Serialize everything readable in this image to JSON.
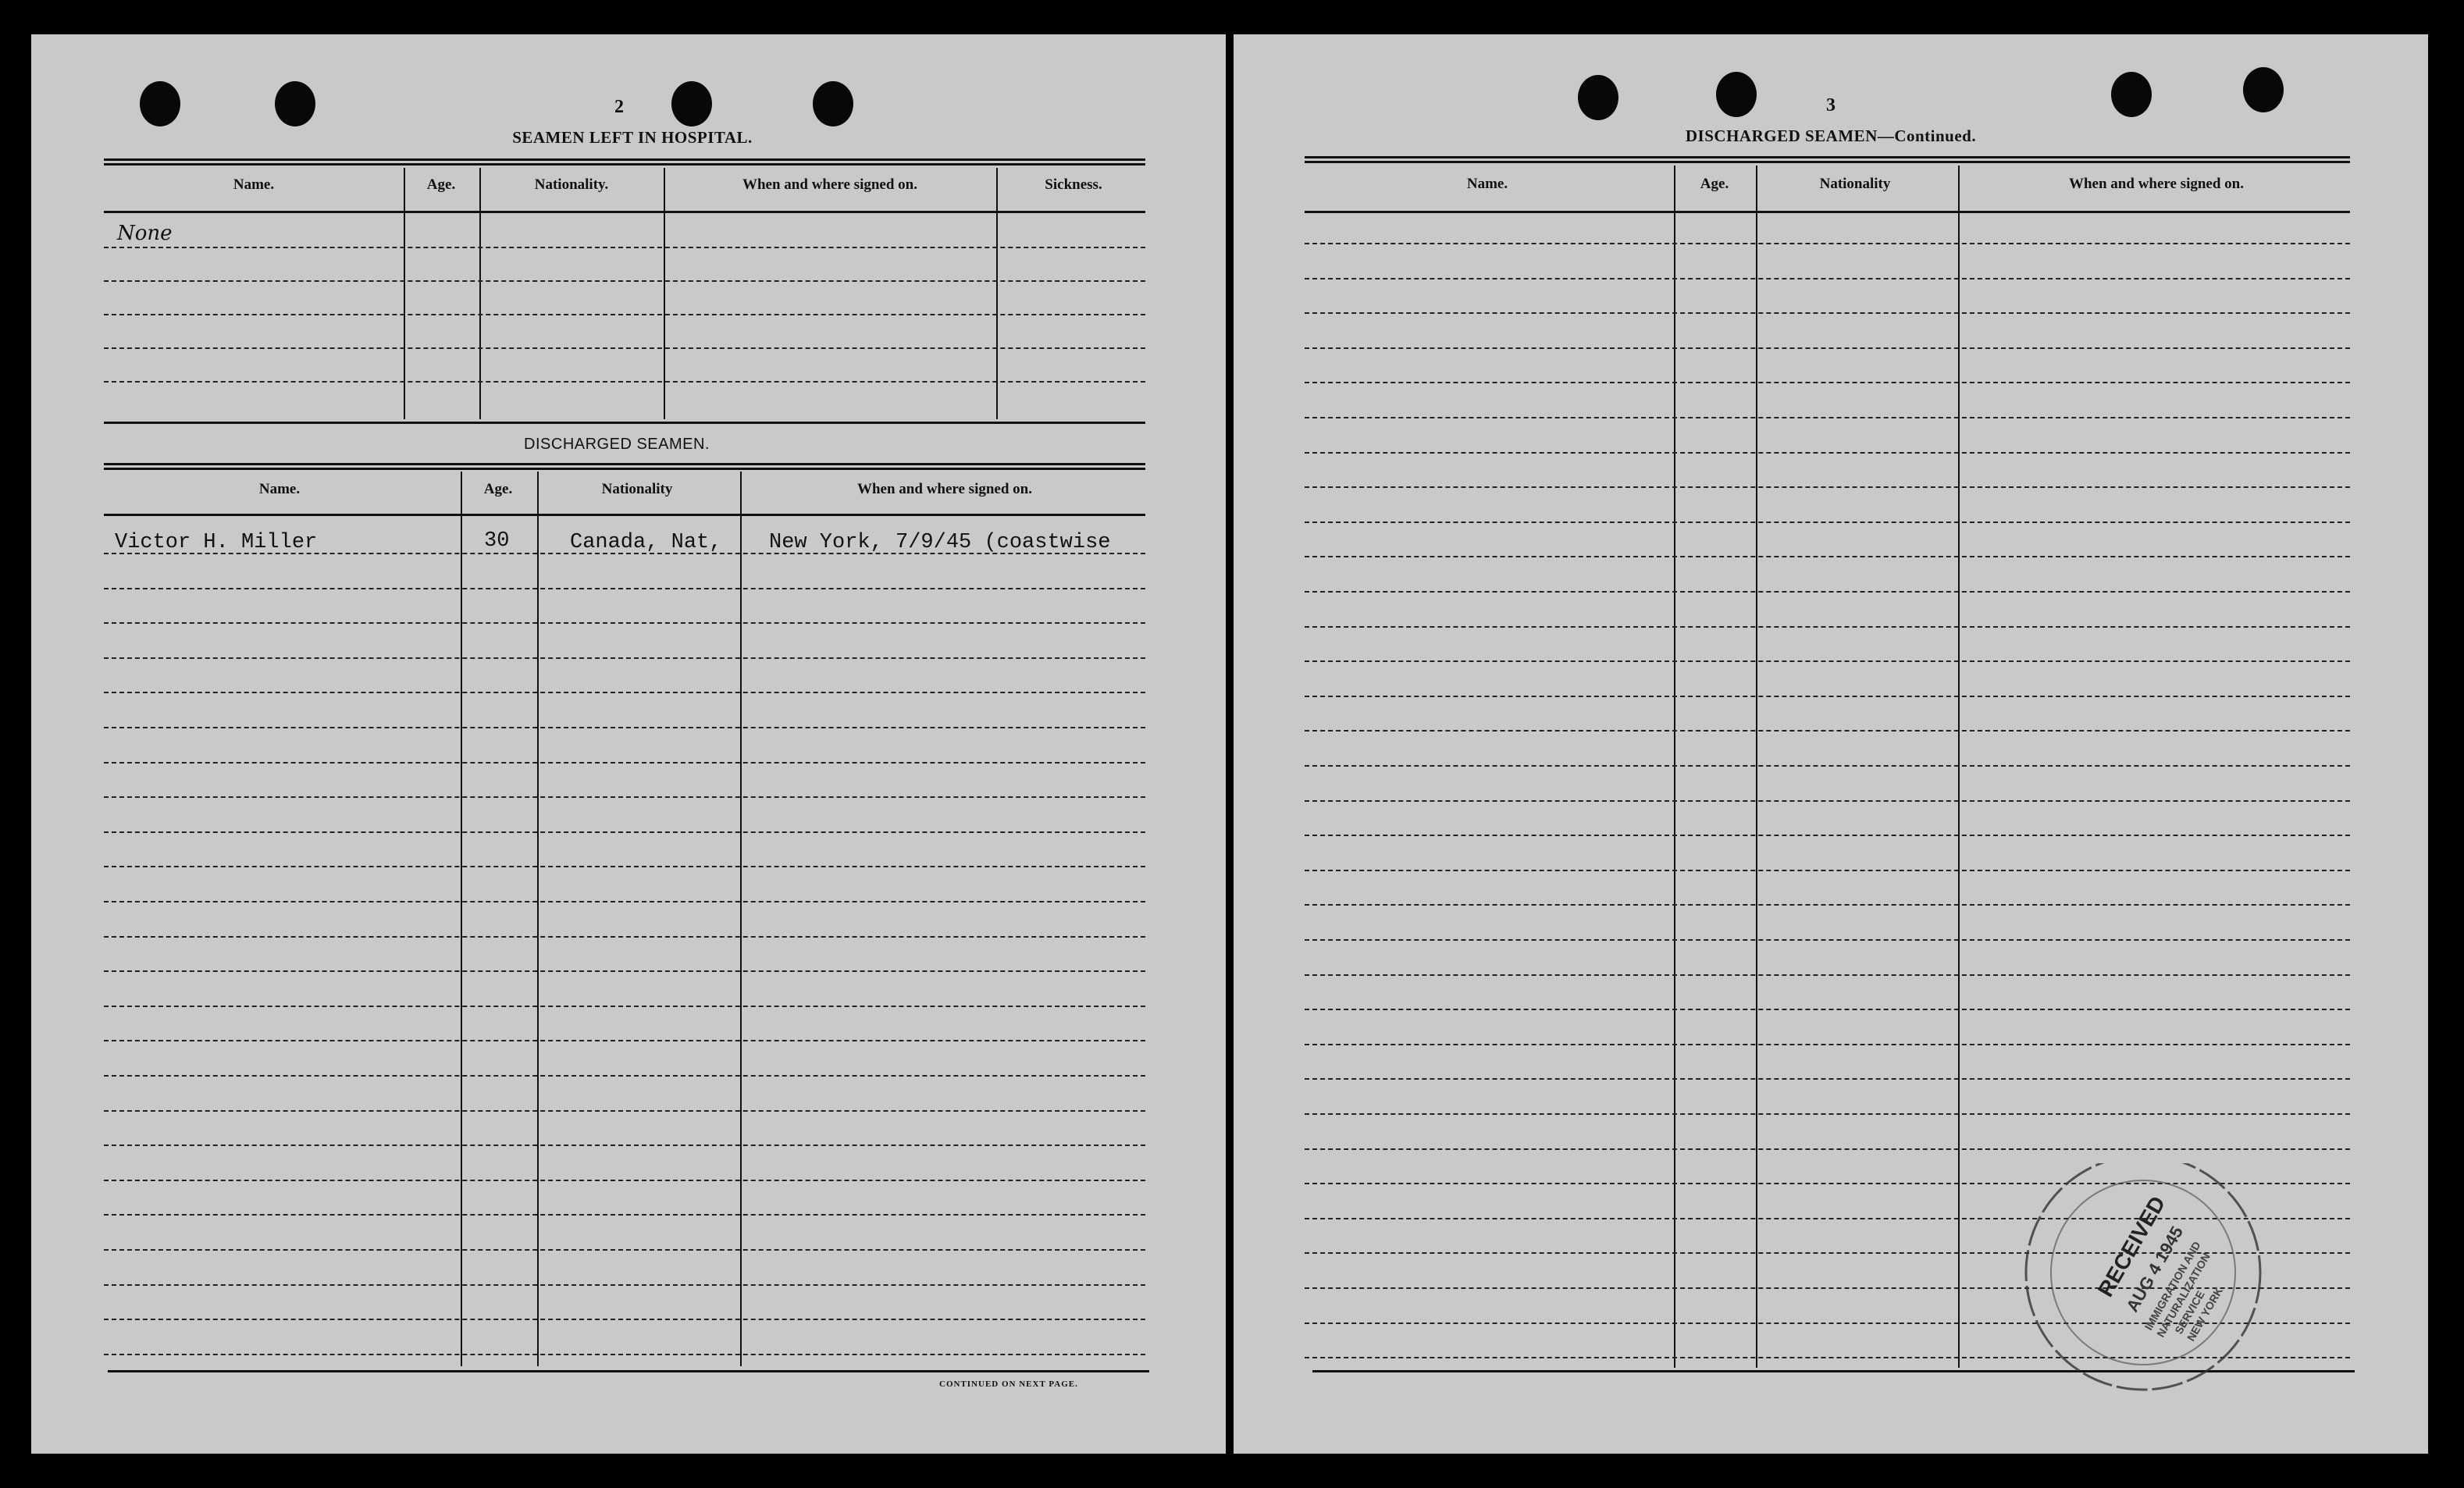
{
  "left_page": {
    "page_number": "2",
    "hospital": {
      "title": "SEAMEN LEFT IN HOSPITAL.",
      "headers": [
        "Name.",
        "Age.",
        "Nationality.",
        "When and where signed on.",
        "Sickness."
      ],
      "entry_name": "None"
    },
    "discharged": {
      "title": "DISCHARGED SEAMEN.",
      "headers": [
        "Name.",
        "Age.",
        "Nationality",
        "When and where signed on."
      ],
      "rows": [
        {
          "name": "Victor H. Miller",
          "age": "30",
          "nationality": "Canada, Nat,",
          "signed_on": "New York, 7/9/45 (coastwise"
        }
      ]
    },
    "footer": "CONTINUED ON NEXT PAGE."
  },
  "right_page": {
    "page_number": "3",
    "title": "DISCHARGED SEAMEN—Continued.",
    "headers": [
      "Name.",
      "Age.",
      "Nationality",
      "When and where signed on."
    ],
    "stamp": {
      "text": "RECEIVED AUG 4 1945 IMMIGRATION AND NATURALIZATION SERVICE NEW YORK, N.Y."
    }
  }
}
